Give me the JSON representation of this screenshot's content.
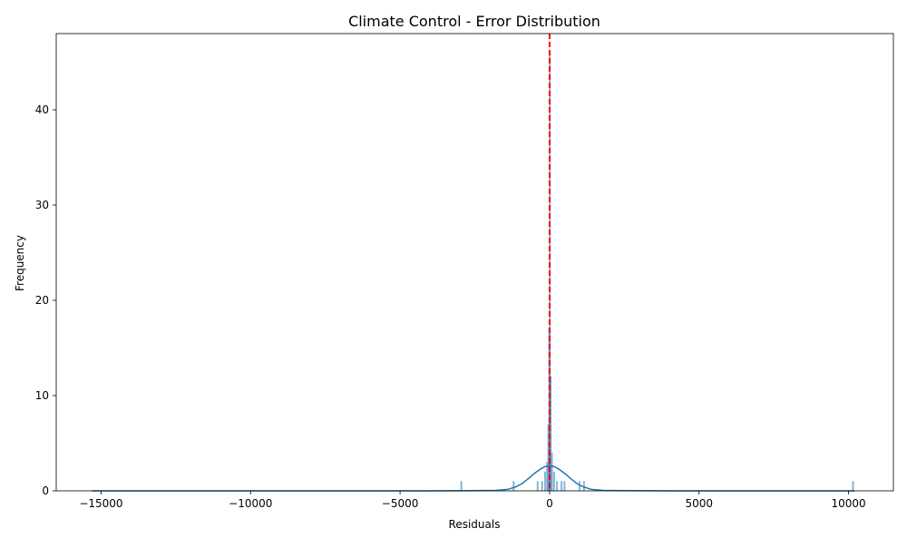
{
  "chart_data": {
    "type": "histogram",
    "title": "Climate Control - Error Distribution",
    "xlabel": "Residuals",
    "ylabel": "Frequency",
    "xlim": [
      -16500,
      11500
    ],
    "ylim": [
      0,
      48
    ],
    "x_ticks": [
      -15000,
      -10000,
      -5000,
      0,
      5000,
      10000
    ],
    "y_ticks": [
      0,
      10,
      20,
      30,
      40
    ],
    "grid": false,
    "bar_color": "#1f77b4",
    "kde_color": "#1f77b4",
    "reference_line": {
      "x": 0,
      "color": "#ff0000",
      "style": "dashed"
    },
    "bins": [
      {
        "x": -2950,
        "count": 1
      },
      {
        "x": -1200,
        "count": 1
      },
      {
        "x": -400,
        "count": 1
      },
      {
        "x": -250,
        "count": 1
      },
      {
        "x": -150,
        "count": 2
      },
      {
        "x": -80,
        "count": 3
      },
      {
        "x": -40,
        "count": 7
      },
      {
        "x": -10,
        "count": 17
      },
      {
        "x": 10,
        "count": 46
      },
      {
        "x": 40,
        "count": 12
      },
      {
        "x": 80,
        "count": 4
      },
      {
        "x": 150,
        "count": 2
      },
      {
        "x": 250,
        "count": 1
      },
      {
        "x": 400,
        "count": 1
      },
      {
        "x": 500,
        "count": 1
      },
      {
        "x": 1000,
        "count": 1
      },
      {
        "x": 1150,
        "count": 1
      },
      {
        "x": 10150,
        "count": 1
      }
    ],
    "kde": {
      "x": [
        -15300,
        -12000,
        -9000,
        -6000,
        -4000,
        -2500,
        -1800,
        -1400,
        -1100,
        -900,
        -700,
        -500,
        -300,
        -150,
        0,
        150,
        300,
        500,
        700,
        900,
        1100,
        1400,
        1800,
        2500,
        4000,
        6000,
        8000,
        10200
      ],
      "y": [
        0,
        0,
        0,
        0,
        0,
        0.02,
        0.05,
        0.15,
        0.45,
        0.8,
        1.3,
        1.85,
        2.3,
        2.55,
        2.65,
        2.55,
        2.3,
        1.85,
        1.3,
        0.8,
        0.45,
        0.15,
        0.05,
        0.02,
        0,
        0,
        0,
        0
      ]
    }
  }
}
